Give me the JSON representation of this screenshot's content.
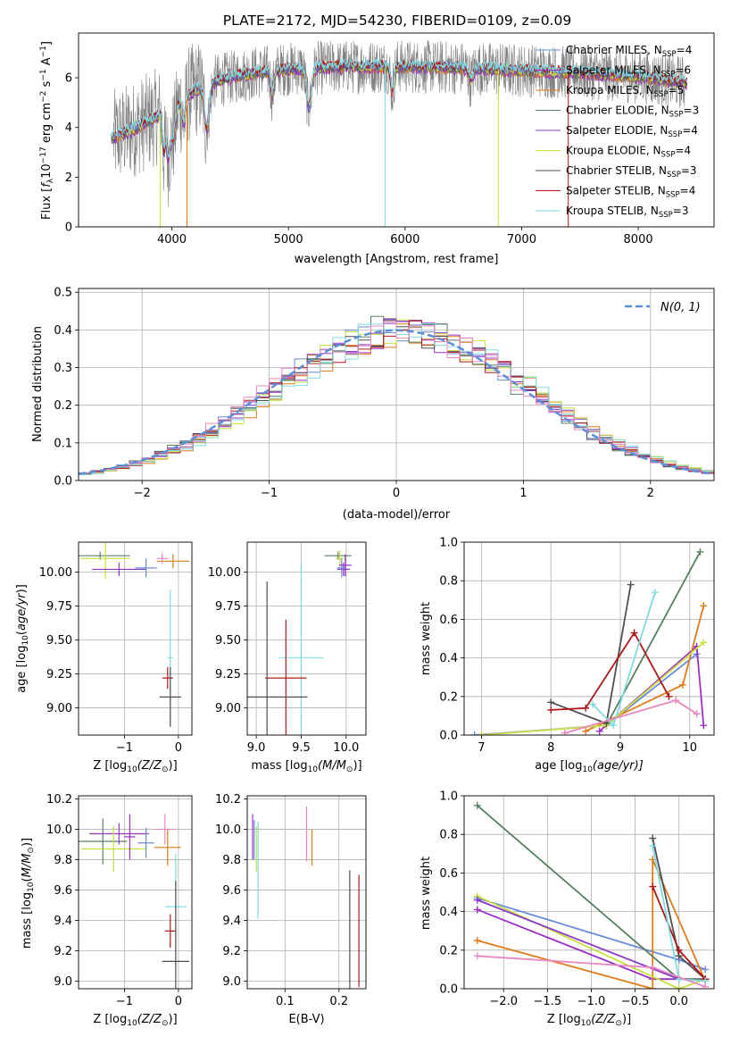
{
  "figure_title": "PLATE=2172, MJD=54230, FIBERID=0109, z=0.09",
  "colors": {
    "chabrier_miles": "#6a8bd8",
    "salpeter_miles": "#9b30c8",
    "kroupa_miles": "#e07b1a",
    "chabrier_elodie": "#5a8060",
    "salpeter_elodie": "#8b38c8",
    "kroupa_elodie": "#c8e040",
    "chabrier_stelib": "#505050",
    "salpeter_stelib": "#b01818",
    "kroupa_stelib": "#80dce0",
    "pink": "#e888c0",
    "data_grey": "#808080",
    "normal_curve": "#5b8fd6"
  },
  "chart_data": [
    {
      "id": "spectrum",
      "type": "line",
      "xlabel": "wavelength [Angstrom, rest frame]",
      "ylabel": "Flux [f_λ10^-17 erg cm^-2 s^-1 A^-1]",
      "xlim": [
        3200,
        8650
      ],
      "ylim": [
        0,
        7.8
      ],
      "xticks": [
        4000,
        5000,
        6000,
        7000,
        8000
      ],
      "yticks": [
        0,
        2,
        4,
        6
      ],
      "grid": false,
      "legend_position": "top-right",
      "legend": [
        {
          "base": "Chabrier MILES, N",
          "sub": "SSP",
          "tail": "=4",
          "color": "chabrier_miles"
        },
        {
          "base": "Salpeter MILES, N",
          "sub": "SSP",
          "tail": "=6",
          "color": "salpeter_miles"
        },
        {
          "base": "Kroupa MILES, N",
          "sub": "SSP",
          "tail": "=5",
          "color": "kroupa_miles"
        },
        {
          "base": "Chabrier ELODIE, N",
          "sub": "SSP",
          "tail": "=3",
          "color": "chabrier_elodie"
        },
        {
          "base": "Salpeter ELODIE, N",
          "sub": "SSP",
          "tail": "=4",
          "color": "salpeter_elodie"
        },
        {
          "base": "Kroupa ELODIE, N",
          "sub": "SSP",
          "tail": "=4",
          "color": "kroupa_elodie"
        },
        {
          "base": "Chabrier STELIB, N",
          "sub": "SSP",
          "tail": "=3",
          "color": "chabrier_stelib"
        },
        {
          "base": "Salpeter STELIB, N",
          "sub": "SSP",
          "tail": "=4",
          "color": "salpeter_stelib"
        },
        {
          "base": "Kroupa STELIB, N",
          "sub": "SSP",
          "tail": "=3",
          "color": "kroupa_stelib"
        }
      ],
      "continuum": {
        "x": [
          3500,
          3700,
          3900,
          4000,
          4200,
          4400,
          4600,
          4800,
          5000,
          5500,
          6000,
          6500,
          7000,
          7500,
          8000,
          8400
        ],
        "y": [
          3.6,
          4.0,
          4.5,
          4.9,
          5.5,
          5.9,
          6.1,
          6.25,
          6.35,
          6.45,
          6.45,
          6.4,
          6.3,
          6.2,
          6.05,
          5.8
        ]
      }
    },
    {
      "id": "residuals",
      "type": "histogram",
      "xlabel": "(data-model)/error",
      "ylabel": "Normed distribution",
      "xlim": [
        -2.5,
        2.5
      ],
      "ylim": [
        0,
        0.51
      ],
      "xticks": [
        -2,
        -1,
        0,
        1,
        2
      ],
      "yticks": [
        0.0,
        0.1,
        0.2,
        0.3,
        0.4,
        0.5
      ],
      "grid": true,
      "legend_position": "top-right",
      "legend_label": "N(0, 1)",
      "bin_width": 0.1,
      "n_bins": 50
    },
    {
      "id": "age_vs_Z",
      "type": "errorbar",
      "xlabel_base": "Z [log",
      "xlabel_sub": "10",
      "xlabel_tail": "(Z/Z",
      "xlabel_sun": "⊙",
      "xlabel_end": ")]",
      "ylabel": "age  [log10(age/yr)]",
      "xlim": [
        -1.85,
        0.25
      ],
      "ylim": [
        8.8,
        10.22
      ],
      "xticks": [
        -1,
        0
      ],
      "yticks": [
        9.0,
        9.25,
        9.5,
        9.75,
        10.0
      ],
      "grid": true,
      "points": [
        {
          "x": -1.45,
          "xerr": 0.55,
          "y": 10.12,
          "yerr": 0.03,
          "color": "chabrier_elodie"
        },
        {
          "x": -1.35,
          "xerr": 0.45,
          "y": 10.1,
          "yerr": 0.15,
          "color": "kroupa_elodie"
        },
        {
          "x": -1.1,
          "xerr": 0.5,
          "y": 10.02,
          "yerr": 0.05,
          "color": "salpeter_elodie"
        },
        {
          "x": -0.6,
          "xerr": 0.2,
          "y": 10.03,
          "yerr": 0.07,
          "color": "chabrier_miles"
        },
        {
          "x": -0.1,
          "xerr": 0.3,
          "y": 10.08,
          "yerr": 0.05,
          "color": "kroupa_miles"
        },
        {
          "x": -0.3,
          "xerr": 0.1,
          "y": 10.1,
          "yerr": 0.04,
          "color": "pink"
        },
        {
          "x": -0.15,
          "xerr": 0.05,
          "y": 9.37,
          "yerr": 0.5,
          "color": "kroupa_stelib"
        },
        {
          "x": -0.2,
          "xerr": 0.1,
          "y": 9.22,
          "yerr": 0.08,
          "color": "salpeter_stelib"
        },
        {
          "x": -0.15,
          "xerr": 0.2,
          "y": 9.08,
          "yerr": 0.22,
          "color": "chabrier_stelib"
        }
      ]
    },
    {
      "id": "age_vs_mass",
      "type": "errorbar",
      "xlabel_base": "mass [log",
      "xlabel_sub": "10",
      "xlabel_tail": "(M/M",
      "xlabel_sun": "⊙",
      "xlabel_end": ")]",
      "ylabel": "",
      "xlim": [
        8.9,
        10.22
      ],
      "ylim": [
        8.8,
        10.22
      ],
      "xticks": [
        9.0,
        9.5,
        10.0
      ],
      "yticks": [
        9.0,
        9.25,
        9.5,
        9.75,
        10.0
      ],
      "grid": true,
      "points": [
        {
          "x": 9.91,
          "xerr": 0.15,
          "y": 10.12,
          "yerr": 0.03,
          "color": "chabrier_elodie"
        },
        {
          "x": 9.93,
          "xerr": 0.05,
          "y": 10.1,
          "yerr": 0.06,
          "color": "kroupa_elodie"
        },
        {
          "x": 9.97,
          "xerr": 0.07,
          "y": 10.02,
          "yerr": 0.05,
          "color": "salpeter_elodie"
        },
        {
          "x": 9.95,
          "xerr": 0.05,
          "y": 10.03,
          "yerr": 0.07,
          "color": "chabrier_miles"
        },
        {
          "x": 9.99,
          "xerr": 0.07,
          "y": 10.05,
          "yerr": 0.08,
          "color": "salpeter_miles"
        },
        {
          "x": 9.5,
          "xerr": 0.25,
          "y": 9.37,
          "yerr": 0.7,
          "color": "kroupa_stelib"
        },
        {
          "x": 9.33,
          "xerr": 0.23,
          "y": 9.22,
          "yerr": 0.43,
          "color": "salpeter_stelib"
        },
        {
          "x": 9.12,
          "xerr": 0.45,
          "y": 9.08,
          "yerr": 0.85,
          "color": "chabrier_stelib"
        }
      ]
    },
    {
      "id": "massweight_vs_age",
      "type": "line",
      "xlabel_base": "age  [log",
      "xlabel_sub": "10",
      "xlabel_tail": "(age/yr)]",
      "ylabel": "mass weight",
      "xlim": [
        6.75,
        10.35
      ],
      "ylim": [
        0,
        1.0
      ],
      "xticks": [
        7,
        8,
        9,
        10
      ],
      "yticks": [
        0.0,
        0.2,
        0.4,
        0.6,
        0.8,
        1.0
      ],
      "grid": true,
      "series": [
        {
          "color": "chabrier_miles",
          "x": [
            6.9,
            8.8,
            10.1
          ],
          "y": [
            0.0,
            0.05,
            0.42
          ]
        },
        {
          "color": "salpeter_miles",
          "x": [
            8.7,
            10.1,
            10.2
          ],
          "y": [
            0.02,
            0.46,
            0.05
          ]
        },
        {
          "color": "kroupa_miles",
          "x": [
            8.5,
            9.9,
            10.2
          ],
          "y": [
            0.02,
            0.26,
            0.67
          ]
        },
        {
          "color": "chabrier_elodie",
          "x": [
            8.8,
            10.15
          ],
          "y": [
            0.05,
            0.95
          ]
        },
        {
          "color": "kroupa_elodie",
          "x": [
            7.0,
            8.8,
            10.2
          ],
          "y": [
            0.0,
            0.05,
            0.48
          ]
        },
        {
          "color": "chabrier_stelib",
          "x": [
            8.0,
            8.8,
            9.15
          ],
          "y": [
            0.17,
            0.06,
            0.78
          ]
        },
        {
          "color": "salpeter_stelib",
          "x": [
            8.0,
            8.5,
            9.2,
            9.7
          ],
          "y": [
            0.13,
            0.14,
            0.53,
            0.2
          ]
        },
        {
          "color": "kroupa_stelib",
          "x": [
            8.6,
            8.9,
            9.5
          ],
          "y": [
            0.16,
            0.05,
            0.74
          ]
        },
        {
          "color": "pink",
          "x": [
            8.2,
            9.8,
            10.1
          ],
          "y": [
            0.01,
            0.18,
            0.11
          ]
        }
      ]
    },
    {
      "id": "mass_vs_Z",
      "type": "errorbar",
      "xlabel_base": "Z [log",
      "xlabel_sub": "10",
      "xlabel_tail": "(Z/Z",
      "xlabel_sun": "⊙",
      "xlabel_end": ")]",
      "ylabel": "mass [log10(M/M⊙)]",
      "xlim": [
        -1.85,
        0.25
      ],
      "ylim": [
        8.95,
        10.22
      ],
      "xticks": [
        -1,
        0
      ],
      "yticks": [
        9.0,
        9.2,
        9.4,
        9.6,
        9.8,
        10.0,
        10.2
      ],
      "grid": true,
      "points": [
        {
          "x": -1.4,
          "xerr": 0.45,
          "y": 9.92,
          "yerr": 0.15,
          "color": "chabrier_elodie"
        },
        {
          "x": -1.1,
          "xerr": 0.55,
          "y": 9.97,
          "yerr": 0.07,
          "color": "salpeter_elodie"
        },
        {
          "x": -1.2,
          "xerr": 0.6,
          "y": 9.87,
          "yerr": 0.15,
          "color": "kroupa_elodie"
        },
        {
          "x": -0.9,
          "xerr": 0.1,
          "y": 9.95,
          "yerr": 0.15,
          "color": "salpeter_miles"
        },
        {
          "x": -0.6,
          "xerr": 0.15,
          "y": 9.91,
          "yerr": 0.1,
          "color": "chabrier_miles"
        },
        {
          "x": -0.2,
          "xerr": 0.25,
          "y": 9.88,
          "yerr": 0.12,
          "color": "kroupa_miles"
        },
        {
          "x": -0.25,
          "xerr": 0.2,
          "y": 10.0,
          "yerr": 0.1,
          "color": "pink"
        },
        {
          "x": -0.05,
          "xerr": 0.2,
          "y": 9.49,
          "yerr": 0.35,
          "color": "kroupa_stelib"
        },
        {
          "x": -0.15,
          "xerr": 0.1,
          "y": 9.33,
          "yerr": 0.11,
          "color": "salpeter_stelib"
        },
        {
          "x": -0.05,
          "xerr": 0.25,
          "y": 9.13,
          "yerr": 0.53,
          "color": "chabrier_stelib"
        }
      ]
    },
    {
      "id": "mass_vs_ebv",
      "type": "errorbar",
      "xlabel": "E(B-V)",
      "ylabel": "",
      "xlim": [
        0.03,
        0.25
      ],
      "ylim": [
        8.95,
        10.22
      ],
      "xticks": [
        0.1,
        0.2
      ],
      "yticks": [
        9.0,
        9.2,
        9.4,
        9.6,
        9.8,
        10.0,
        10.2
      ],
      "grid": true,
      "points": [
        {
          "x": 0.04,
          "xerr": 0,
          "y": 9.95,
          "yerr": 0.15,
          "color": "salpeter_miles"
        },
        {
          "x": 0.043,
          "xerr": 0,
          "y": 9.93,
          "yerr": 0.13,
          "color": "chabrier_miles"
        },
        {
          "x": 0.047,
          "xerr": 0,
          "y": 9.87,
          "yerr": 0.15,
          "color": "kroupa_elodie"
        },
        {
          "x": 0.05,
          "xerr": 0,
          "y": 9.73,
          "yerr": 0.32,
          "color": "kroupa_stelib"
        },
        {
          "x": 0.14,
          "xerr": 0,
          "y": 9.97,
          "yerr": 0.18,
          "color": "pink"
        },
        {
          "x": 0.15,
          "xerr": 0,
          "y": 9.88,
          "yerr": 0.12,
          "color": "kroupa_miles"
        },
        {
          "x": 0.22,
          "xerr": 0,
          "y": 9.13,
          "yerr": 0.6,
          "color": "chabrier_stelib"
        },
        {
          "x": 0.237,
          "xerr": 0,
          "y": 9.33,
          "yerr": 0.37,
          "color": "salpeter_stelib"
        }
      ]
    },
    {
      "id": "massweight_vs_Z",
      "type": "line",
      "xlabel_base": "Z [log",
      "xlabel_sub": "10",
      "xlabel_tail": "(Z/Z",
      "xlabel_sun": "⊙",
      "xlabel_end": ")]",
      "ylabel": "mass weight",
      "xlim": [
        -2.45,
        0.4
      ],
      "ylim": [
        0,
        1.0
      ],
      "xticks": [
        -2.0,
        -1.5,
        -1.0,
        -0.5,
        0.0
      ],
      "yticks": [
        0.0,
        0.2,
        0.4,
        0.6,
        0.8,
        1.0
      ],
      "grid": true,
      "series": [
        {
          "color": "chabrier_miles",
          "x": [
            -2.3,
            0.0,
            0.3
          ],
          "y": [
            0.47,
            0.15,
            0.1
          ]
        },
        {
          "color": "salpeter_miles",
          "x": [
            -2.3,
            -0.3,
            0.3
          ],
          "y": [
            0.41,
            0.05,
            0.05
          ]
        },
        {
          "color": "kroupa_miles",
          "x": [
            -2.3,
            -0.3,
            -0.3,
            0.3
          ],
          "y": [
            0.25,
            0.0,
            0.67,
            0.04
          ]
        },
        {
          "color": "chabrier_elodie",
          "x": [
            -2.3,
            0.0,
            0.3
          ],
          "y": [
            0.95,
            0.05,
            0.05
          ]
        },
        {
          "color": "kroupa_elodie",
          "x": [
            -2.3,
            0.0,
            0.3
          ],
          "y": [
            0.48,
            0.0,
            0.05
          ]
        },
        {
          "color": "salpeter_elodie",
          "x": [
            -2.3,
            0.0,
            0.3
          ],
          "y": [
            0.46,
            0.05,
            0.04
          ]
        },
        {
          "color": "chabrier_stelib",
          "x": [
            -0.3,
            0.0,
            0.3
          ],
          "y": [
            0.78,
            0.17,
            0.05
          ]
        },
        {
          "color": "salpeter_stelib",
          "x": [
            -0.3,
            0.0,
            0.3
          ],
          "y": [
            0.53,
            0.2,
            0.05
          ]
        },
        {
          "color": "kroupa_stelib",
          "x": [
            -0.3,
            0.0,
            0.3
          ],
          "y": [
            0.74,
            0.05,
            0.04
          ]
        },
        {
          "color": "pink",
          "x": [
            -2.3,
            -0.3,
            0.3
          ],
          "y": [
            0.17,
            0.11,
            0.01
          ]
        }
      ]
    }
  ]
}
